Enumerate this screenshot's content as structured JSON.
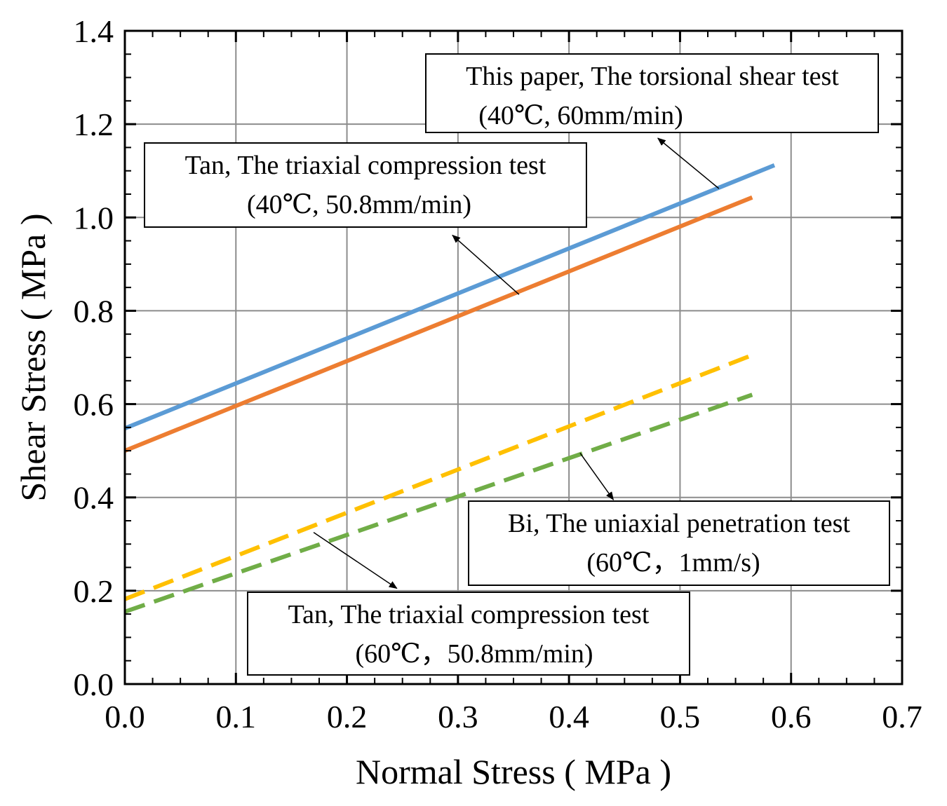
{
  "chart_data": {
    "type": "line",
    "title": "",
    "xlabel": "Normal Stress ( MPa )",
    "ylabel": "Shear Stress ( MPa )",
    "xlim": [
      0.0,
      0.7
    ],
    "ylim": [
      0.0,
      1.4
    ],
    "xticks": [
      "0.0",
      "0.1",
      "0.2",
      "0.3",
      "0.4",
      "0.5",
      "0.6",
      "0.7"
    ],
    "yticks": [
      "0.0",
      "0.2",
      "0.4",
      "0.6",
      "0.8",
      "1.0",
      "1.2",
      "1.4"
    ],
    "grid": true,
    "series": [
      {
        "name": "This paper, The torsional shear test (40℃, 60mm/min)",
        "color": "#5b9bd5",
        "style": "solid",
        "x": [
          0.0,
          0.585
        ],
        "y": [
          0.548,
          1.112
        ]
      },
      {
        "name": "Tan, The triaxial compression test (40℃, 50.8mm/min)",
        "color": "#ed7d31",
        "style": "solid",
        "x": [
          0.0,
          0.565
        ],
        "y": [
          0.5,
          1.043
        ]
      },
      {
        "name": "Bi, The uniaxial penetration test (60℃，1mm/s)",
        "color": "#ffc000",
        "style": "dashed",
        "x": [
          0.0,
          0.565
        ],
        "y": [
          0.182,
          0.705
        ]
      },
      {
        "name": "Tan, The triaxial compression test (60℃，50.8mm/min)",
        "color": "#70ad47",
        "style": "dashed",
        "x": [
          0.0,
          0.565
        ],
        "y": [
          0.155,
          0.62
        ]
      }
    ],
    "annotations": [
      {
        "line1": "This paper, The torsional shear test",
        "line2": "(40℃, 60mm/min)",
        "arrow_from": [
          0.535,
          1.062
        ],
        "arrow_to": [
          0.48,
          1.17
        ]
      },
      {
        "line1": "Tan, The triaxial compression test",
        "line2": "(40℃, 50.8mm/min)",
        "arrow_from": [
          0.355,
          0.835
        ],
        "arrow_to": [
          0.295,
          0.962
        ]
      },
      {
        "line1": "Bi, The uniaxial penetration test",
        "line2": "(60℃，1mm/s)",
        "arrow_from": [
          0.41,
          0.495
        ],
        "arrow_to": [
          0.44,
          0.395
        ]
      },
      {
        "line1": "Tan, The triaxial compression test",
        "line2": "(60℃，50.8mm/min)",
        "arrow_from": [
          0.17,
          0.325
        ],
        "arrow_to": [
          0.245,
          0.205
        ]
      }
    ]
  }
}
